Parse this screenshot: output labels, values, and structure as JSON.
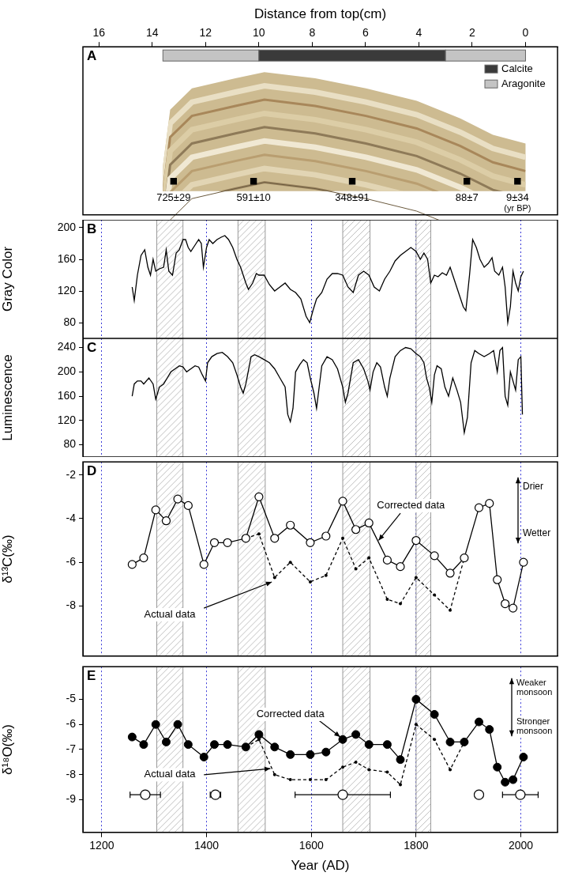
{
  "chart_data": [
    {
      "panel": "A",
      "type": "scatter",
      "xlabel": "Distance from top(cm)",
      "xlim": [
        16.6,
        -1.2
      ],
      "xticks": [
        16,
        14,
        12,
        10,
        8,
        6,
        4,
        2,
        0
      ],
      "tick_labels": "x",
      "grid": false,
      "legend": "upper right",
      "mineralogy": {
        "segments": [
          {
            "from": 13.6,
            "to": 10.0,
            "mineral": "Aragonite"
          },
          {
            "from": 10.0,
            "to": 3.0,
            "mineral": "Calcite"
          },
          {
            "from": 3.0,
            "to": 0,
            "mineral": "Aragonite"
          }
        ],
        "legend_items": [
          {
            "name": "Calcite",
            "color": "#3a3a3a"
          },
          {
            "name": "Aragonite",
            "color": "#c4c4c4"
          }
        ]
      },
      "samples": {
        "x": [
          13.2,
          10.2,
          6.5,
          2.2,
          0.3
        ],
        "values": [
          725,
          591,
          348,
          88,
          9
        ],
        "errors": [
          29,
          10,
          91,
          7,
          34
        ],
        "value_labels": [
          "725±29",
          "591±10",
          "348±91",
          "88±7",
          "9±34"
        ],
        "unit": "(yr BP)",
        "color": "#000000",
        "marker": "square"
      }
    },
    {
      "panel": "B",
      "type": "line",
      "ylabel": "Gray Color",
      "xlim": [
        1164,
        2070
      ],
      "xticks": [
        1200,
        1400,
        1600,
        1800,
        2000
      ],
      "ylim": [
        60,
        210
      ],
      "yticks": [
        80,
        120,
        160,
        200
      ],
      "grid": "x",
      "tick_labels": "y",
      "shaded_periods": [
        [
          1305,
          1355
        ],
        [
          1460,
          1512
        ],
        [
          1660,
          1712
        ],
        [
          1800,
          1828
        ]
      ],
      "color": "#000000",
      "marker": "none",
      "line_style": "solid",
      "x": [
        1258,
        1262,
        1268,
        1275,
        1282,
        1288,
        1293,
        1298,
        1303,
        1310,
        1318,
        1323,
        1328,
        1335,
        1342,
        1348,
        1355,
        1360,
        1365,
        1370,
        1378,
        1385,
        1390,
        1394,
        1400,
        1405,
        1412,
        1420,
        1428,
        1435,
        1442,
        1450,
        1458,
        1465,
        1470,
        1475,
        1480,
        1488,
        1495,
        1500,
        1510,
        1520,
        1530,
        1540,
        1550,
        1560,
        1570,
        1580,
        1590,
        1597,
        1603,
        1610,
        1620,
        1630,
        1640,
        1650,
        1660,
        1670,
        1680,
        1690,
        1700,
        1710,
        1720,
        1730,
        1740,
        1750,
        1760,
        1770,
        1780,
        1790,
        1800,
        1808,
        1815,
        1822,
        1828,
        1835,
        1842,
        1850,
        1858,
        1865,
        1870,
        1875,
        1880,
        1885,
        1890,
        1895,
        1902,
        1908,
        1915,
        1922,
        1930,
        1938,
        1945,
        1950,
        1958,
        1965,
        1970,
        1975,
        1980,
        1985,
        1990,
        1995,
        2000,
        2005
      ],
      "values": [
        125,
        108,
        140,
        165,
        172,
        150,
        140,
        160,
        145,
        148,
        150,
        172,
        145,
        140,
        168,
        172,
        185,
        185,
        175,
        170,
        178,
        185,
        180,
        150,
        175,
        185,
        180,
        185,
        188,
        190,
        185,
        175,
        160,
        150,
        140,
        130,
        122,
        130,
        142,
        140,
        140,
        128,
        120,
        125,
        130,
        122,
        118,
        110,
        88,
        80,
        95,
        110,
        118,
        135,
        142,
        142,
        140,
        125,
        118,
        140,
        145,
        140,
        125,
        120,
        135,
        145,
        158,
        165,
        170,
        175,
        170,
        160,
        168,
        160,
        130,
        140,
        138,
        143,
        140,
        150,
        140,
        130,
        120,
        110,
        100,
        95,
        140,
        185,
        175,
        160,
        150,
        155,
        162,
        145,
        140,
        150,
        125,
        80,
        100,
        145,
        130,
        120,
        138,
        145
      ]
    },
    {
      "panel": "C",
      "type": "line",
      "ylabel": "Luminescence",
      "xlim": [
        1164,
        2070
      ],
      "xticks": [
        1200,
        1400,
        1600,
        1800,
        2000
      ],
      "ylim": [
        60,
        255
      ],
      "yticks": [
        80,
        120,
        160,
        200,
        240
      ],
      "grid": "x",
      "tick_labels": "y",
      "shaded_periods": [
        [
          1305,
          1355
        ],
        [
          1460,
          1512
        ],
        [
          1660,
          1712
        ],
        [
          1800,
          1828
        ]
      ],
      "color": "#000000",
      "marker": "none",
      "line_style": "solid",
      "x": [
        1258,
        1262,
        1268,
        1275,
        1280,
        1290,
        1298,
        1303,
        1310,
        1318,
        1325,
        1332,
        1340,
        1348,
        1355,
        1362,
        1370,
        1378,
        1385,
        1392,
        1398,
        1402,
        1410,
        1420,
        1430,
        1440,
        1450,
        1458,
        1465,
        1470,
        1475,
        1485,
        1492,
        1500,
        1510,
        1520,
        1530,
        1540,
        1550,
        1555,
        1560,
        1565,
        1570,
        1578,
        1585,
        1592,
        1598,
        1605,
        1610,
        1615,
        1620,
        1630,
        1640,
        1650,
        1660,
        1665,
        1670,
        1680,
        1690,
        1700,
        1708,
        1712,
        1718,
        1725,
        1732,
        1740,
        1745,
        1750,
        1760,
        1770,
        1780,
        1790,
        1800,
        1808,
        1815,
        1820,
        1825,
        1830,
        1835,
        1840,
        1848,
        1855,
        1862,
        1870,
        1878,
        1885,
        1892,
        1898,
        1905,
        1912,
        1920,
        1930,
        1940,
        1948,
        1955,
        1960,
        1965,
        1970,
        1975,
        1980,
        1985,
        1990,
        1995,
        2000,
        2003
      ],
      "values": [
        160,
        180,
        185,
        185,
        180,
        190,
        180,
        155,
        175,
        180,
        190,
        200,
        205,
        210,
        208,
        200,
        205,
        210,
        208,
        195,
        185,
        215,
        225,
        230,
        232,
        225,
        215,
        195,
        175,
        165,
        180,
        225,
        228,
        225,
        220,
        215,
        205,
        190,
        175,
        130,
        118,
        140,
        200,
        212,
        220,
        215,
        190,
        165,
        140,
        175,
        210,
        225,
        220,
        205,
        175,
        150,
        165,
        215,
        220,
        205,
        185,
        170,
        200,
        215,
        208,
        175,
        160,
        190,
        225,
        235,
        240,
        238,
        230,
        225,
        215,
        190,
        175,
        150,
        195,
        210,
        205,
        175,
        160,
        190,
        170,
        150,
        100,
        125,
        215,
        235,
        230,
        225,
        230,
        235,
        200,
        235,
        240,
        160,
        145,
        200,
        185,
        170,
        220,
        225,
        130
      ]
    },
    {
      "panel": "D",
      "type": "line",
      "ylabel": "δ¹³C(‰)",
      "xlim": [
        1164,
        2070
      ],
      "xticks": [
        1200,
        1400,
        1600,
        1800,
        2000
      ],
      "ylim": [
        -10.3,
        -1.4
      ],
      "yticks": [
        -8,
        -6,
        -4,
        -2
      ],
      "grid": "x",
      "tick_labels": "y",
      "shaded_periods": [
        [
          1305,
          1355
        ],
        [
          1460,
          1512
        ],
        [
          1660,
          1712
        ],
        [
          1800,
          1828
        ]
      ],
      "annotations": [
        "Drier",
        "Wetter"
      ],
      "x": [
        1258,
        1280,
        1303,
        1323,
        1345,
        1365,
        1395,
        1415,
        1440,
        1475,
        1500,
        1530,
        1560,
        1598,
        1628,
        1660,
        1685,
        1710,
        1745,
        1770,
        1800,
        1835,
        1865,
        1892,
        1920,
        1940,
        1955,
        1970,
        1985,
        2005
      ],
      "series": [
        {
          "name": "Corrected data",
          "color": "#000000",
          "marker": "open_circle",
          "line_style": "solid",
          "values": [
            -6.1,
            -5.8,
            -3.6,
            -4.1,
            -3.1,
            -3.4,
            -6.1,
            -5.1,
            -5.1,
            -4.9,
            -3.0,
            -4.9,
            -4.3,
            -5.1,
            -4.8,
            -3.2,
            -4.5,
            -4.2,
            -5.9,
            -6.2,
            -5.0,
            -5.7,
            -6.5,
            -5.8,
            -3.5,
            -3.3,
            -6.8,
            -7.9,
            -8.1,
            -6.0
          ]
        },
        {
          "name": "Actual data",
          "color": "#000000",
          "marker": "small_dot",
          "line_style": "dashed",
          "values": [
            null,
            null,
            null,
            null,
            null,
            null,
            null,
            null,
            null,
            -4.9,
            -4.7,
            -6.7,
            -6.0,
            -6.9,
            -6.6,
            -4.9,
            -6.3,
            -5.8,
            -7.7,
            -7.9,
            -6.7,
            -7.5,
            -8.2,
            -5.8,
            null,
            null,
            null,
            null,
            null,
            null
          ]
        }
      ]
    },
    {
      "panel": "E",
      "type": "line",
      "ylabel": "δ¹⁸O(‰)",
      "xlabel": "Year (AD)",
      "xlim": [
        1164,
        2070
      ],
      "xticks": [
        1200,
        1400,
        1600,
        1800,
        2000
      ],
      "ylim": [
        -10.3,
        -3.7
      ],
      "yticks": [
        -9,
        -8,
        -7,
        -6,
        -5
      ],
      "grid": "x",
      "tick_labels": true,
      "shaded_periods": [
        [
          1305,
          1355
        ],
        [
          1460,
          1512
        ],
        [
          1660,
          1712
        ],
        [
          1800,
          1828
        ]
      ],
      "annotations": [
        "Weaker monsoon",
        "Stronger monsoon"
      ],
      "x": [
        1258,
        1280,
        1303,
        1323,
        1345,
        1365,
        1395,
        1415,
        1440,
        1475,
        1500,
        1530,
        1560,
        1598,
        1628,
        1660,
        1685,
        1710,
        1745,
        1770,
        1800,
        1835,
        1865,
        1892,
        1920,
        1940,
        1955,
        1970,
        1985,
        2005
      ],
      "series": [
        {
          "name": "Corrected data",
          "color": "#000000",
          "marker": "filled_circle",
          "line_style": "solid",
          "values": [
            -6.5,
            -6.8,
            -6.0,
            -6.7,
            -6.0,
            -6.8,
            -7.3,
            -6.8,
            -6.8,
            -6.9,
            -6.4,
            -6.9,
            -7.2,
            -7.2,
            -7.1,
            -6.6,
            -6.4,
            -6.8,
            -6.8,
            -7.4,
            -5.0,
            -5.6,
            -6.7,
            -6.7,
            -5.9,
            -6.2,
            -7.7,
            -8.3,
            -8.2,
            -7.3
          ]
        },
        {
          "name": "Actual data",
          "color": "#000000",
          "marker": "small_dot",
          "line_style": "dashed",
          "values": [
            null,
            null,
            null,
            null,
            null,
            null,
            null,
            null,
            null,
            -6.9,
            -6.6,
            -8.0,
            -8.2,
            -8.2,
            -8.2,
            -7.7,
            -7.5,
            -7.8,
            -7.9,
            -8.4,
            -6.0,
            -6.6,
            -7.8,
            -6.7,
            null,
            null,
            null,
            null,
            null,
            null
          ]
        }
      ],
      "age_points": {
        "x": [
          1283,
          1417,
          1660,
          1920,
          1999
        ],
        "values": [
          -8.8,
          -8.8,
          -8.8,
          -8.8,
          -8.8
        ],
        "errors": [
          29,
          10,
          91,
          7,
          34
        ],
        "marker": "open_circle",
        "color": "#000000"
      }
    }
  ]
}
